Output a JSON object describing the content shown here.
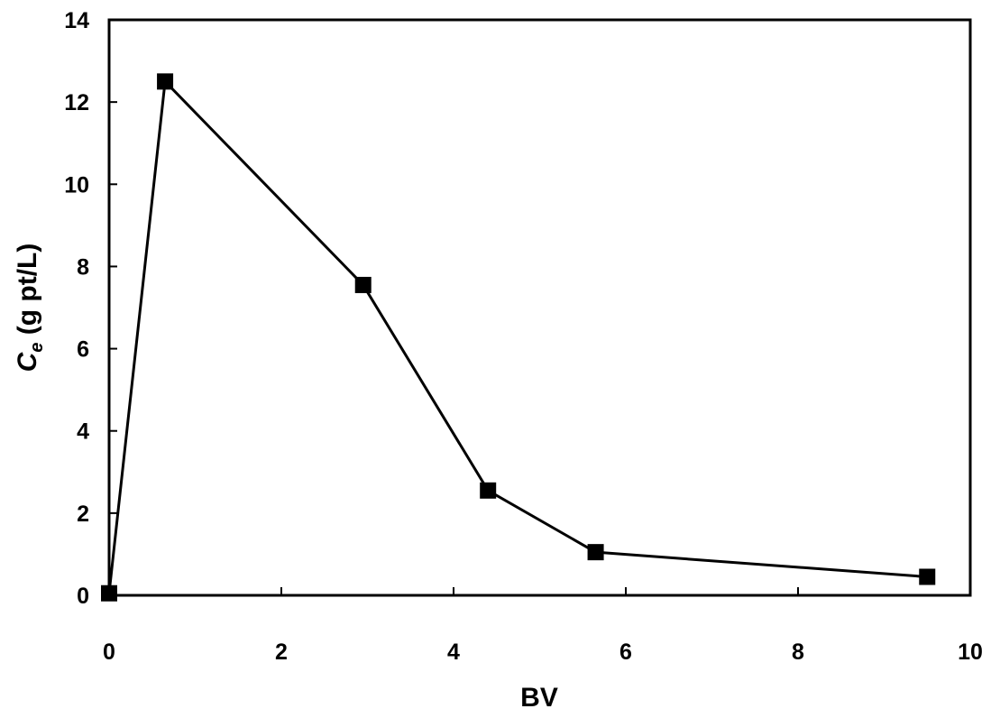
{
  "chart_data": {
    "type": "line",
    "title": "",
    "xlabel": "BV",
    "ylabel_main": "C",
    "ylabel_sub": "e",
    "ylabel_rest": " (g pt/L)",
    "xlim": [
      0,
      10
    ],
    "ylim": [
      0,
      14
    ],
    "xticks": [
      0,
      2,
      4,
      6,
      8,
      10
    ],
    "yticks": [
      0,
      2,
      4,
      6,
      8,
      10,
      12,
      14
    ],
    "grid": false,
    "legend": "none",
    "marker": "square",
    "color": "#000000",
    "series": [
      {
        "x": [
          0.0,
          0.65,
          2.95,
          4.4,
          5.65,
          9.5
        ],
        "y": [
          0.05,
          12.5,
          7.55,
          2.55,
          1.05,
          0.45
        ]
      }
    ]
  }
}
